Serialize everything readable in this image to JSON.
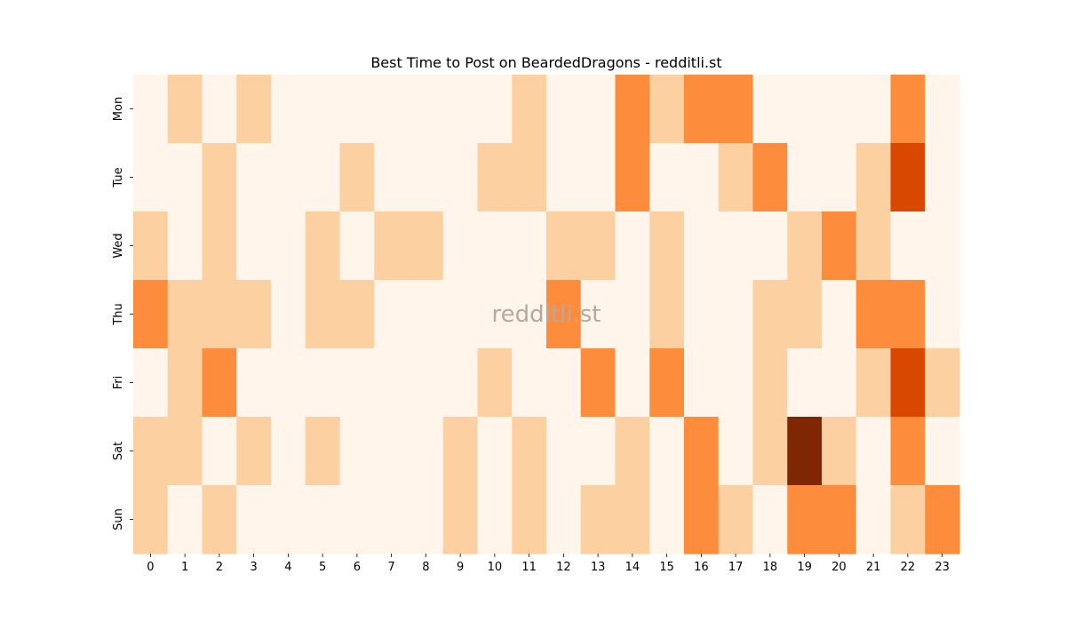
{
  "chart_data": {
    "type": "heatmap",
    "title": "Best Time to Post on BeardedDragons - redditli.st",
    "watermark": "redditli.st",
    "xlabel": "",
    "ylabel": "",
    "x_categories": [
      "0",
      "1",
      "2",
      "3",
      "4",
      "5",
      "6",
      "7",
      "8",
      "9",
      "10",
      "11",
      "12",
      "13",
      "14",
      "15",
      "16",
      "17",
      "18",
      "19",
      "20",
      "21",
      "22",
      "23"
    ],
    "y_categories": [
      "Mon",
      "Tue",
      "Wed",
      "Thu",
      "Fri",
      "Sat",
      "Sun"
    ],
    "values": [
      [
        0,
        1,
        0,
        1,
        0,
        0,
        0,
        0,
        0,
        0,
        0,
        1,
        0,
        0,
        2,
        1,
        2,
        2,
        0,
        0,
        0,
        0,
        2,
        0
      ],
      [
        0,
        0,
        1,
        0,
        0,
        0,
        1,
        0,
        0,
        0,
        1,
        1,
        0,
        0,
        2,
        0,
        0,
        1,
        2,
        0,
        0,
        1,
        3,
        0
      ],
      [
        1,
        0,
        1,
        0,
        0,
        1,
        0,
        1,
        1,
        0,
        0,
        0,
        1,
        1,
        0,
        1,
        0,
        0,
        0,
        1,
        2,
        1,
        0,
        0
      ],
      [
        2,
        1,
        1,
        1,
        0,
        1,
        1,
        0,
        0,
        0,
        0,
        0,
        2,
        0,
        0,
        1,
        0,
        0,
        1,
        1,
        0,
        2,
        2,
        0
      ],
      [
        0,
        1,
        2,
        0,
        0,
        0,
        0,
        0,
        0,
        0,
        1,
        0,
        0,
        2,
        0,
        2,
        0,
        0,
        1,
        0,
        0,
        1,
        3,
        1
      ],
      [
        1,
        1,
        0,
        1,
        0,
        1,
        0,
        0,
        0,
        1,
        0,
        1,
        0,
        0,
        1,
        0,
        2,
        0,
        1,
        4,
        1,
        0,
        2,
        0
      ],
      [
        1,
        0,
        1,
        0,
        0,
        0,
        0,
        0,
        0,
        1,
        0,
        1,
        0,
        1,
        1,
        0,
        2,
        1,
        0,
        2,
        2,
        0,
        1,
        2
      ]
    ],
    "colormap": [
      "#fff5eb",
      "#fdd0a2",
      "#fd8d3c",
      "#d94801",
      "#7f2704"
    ],
    "grid": false,
    "legend": "none"
  }
}
